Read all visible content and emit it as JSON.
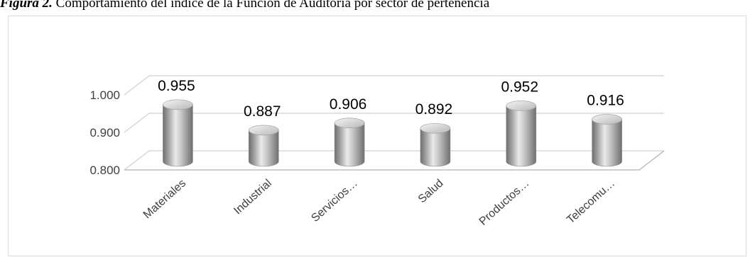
{
  "caption": {
    "label": "Figura 2.",
    "text": " Comportamiento del índice de la Función de Auditoría por sector de pertenencia"
  },
  "chart_data": {
    "type": "bar",
    "title": "",
    "xlabel": "",
    "ylabel": "",
    "categories": [
      "Materiales",
      "Industrial",
      "Servicios…",
      "Salud",
      "Productos…",
      "Telecomu…"
    ],
    "values": [
      0.955,
      0.887,
      0.906,
      0.892,
      0.952,
      0.916
    ],
    "value_labels": [
      "0.955",
      "0.887",
      "0.906",
      "0.892",
      "0.952",
      "0.916"
    ],
    "yticks": [
      0.8,
      0.9,
      1.0
    ],
    "ytick_labels": [
      "0.800",
      "0.900",
      "1.000"
    ],
    "ylim": [
      0.8,
      1.0
    ],
    "grid": true,
    "legend": "none",
    "bar_color": "#a6a6a6",
    "perspective": "3d"
  }
}
